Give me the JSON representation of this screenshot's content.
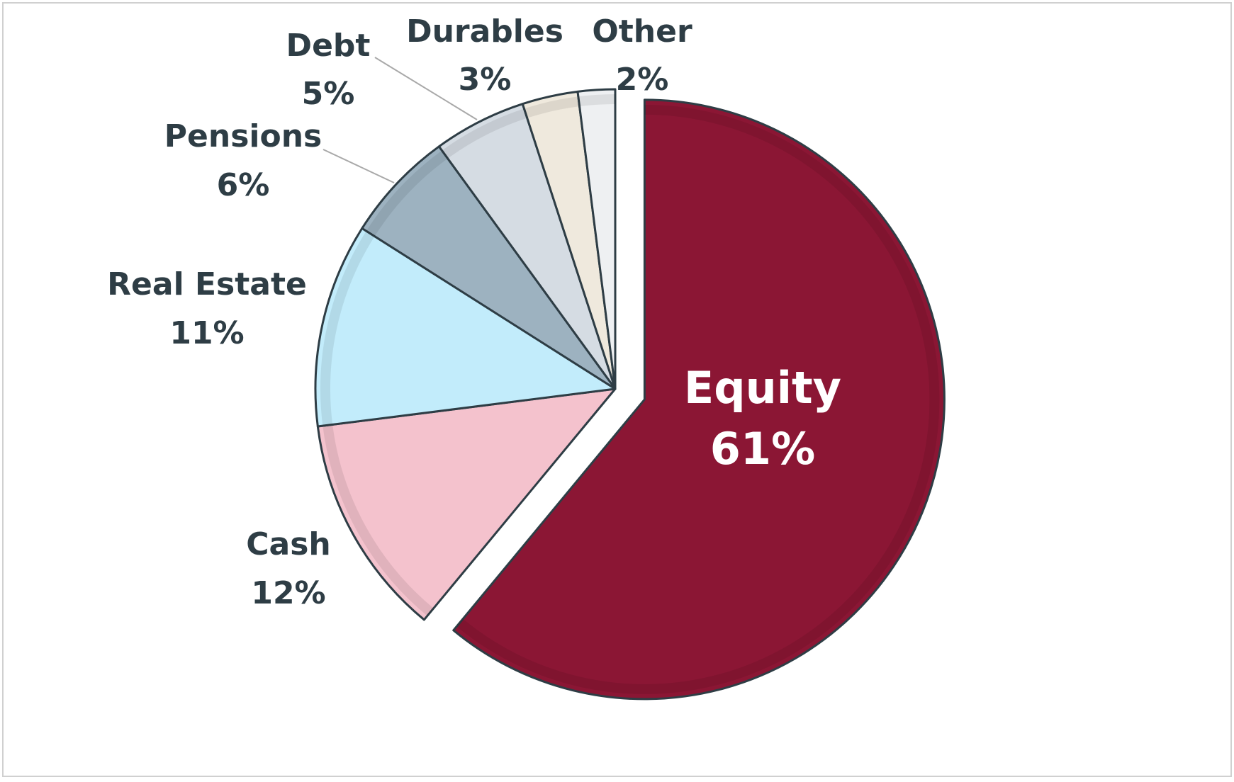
{
  "chart_data": {
    "type": "pie",
    "categories": [
      "Equity",
      "Cash",
      "Real Estate",
      "Pensions",
      "Debt",
      "Durables",
      "Other"
    ],
    "values": [
      61,
      12,
      11,
      6,
      5,
      3,
      2
    ],
    "value_labels": [
      "61%",
      "12%",
      "11%",
      "6%",
      "5%",
      "3%",
      "2%"
    ],
    "colors": [
      "#8b1634",
      "#f4c2cd",
      "#c2ecfb",
      "#9db2c0",
      "#d5dce3",
      "#efe9dd",
      "#eef0f2"
    ]
  }
}
